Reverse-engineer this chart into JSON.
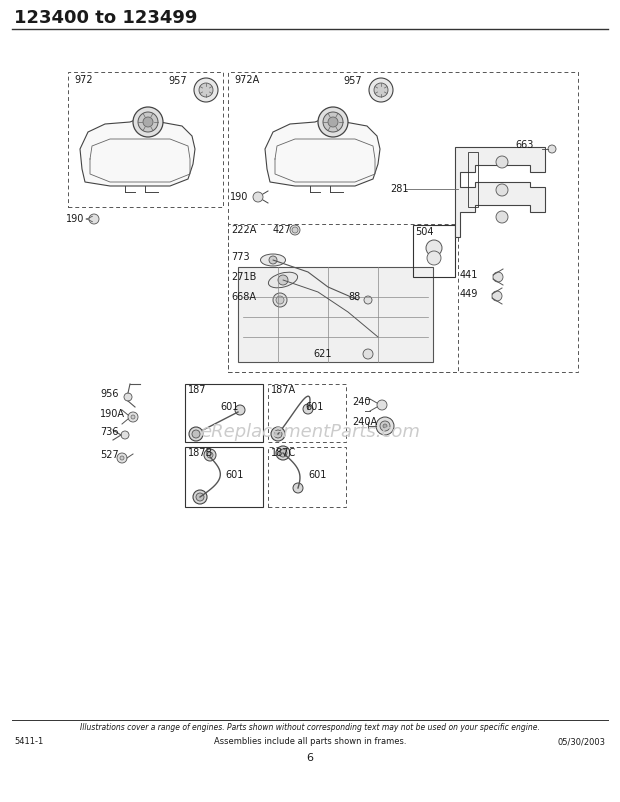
{
  "title": "123400 to 123499",
  "background_color": "#ffffff",
  "page_number": "6",
  "left_code": "5411-1",
  "center_footer": "Assemblies include all parts shown in frames.",
  "right_code": "05/30/2003",
  "disclaimer": "Illustrations cover a range of engines. Parts shown without corresponding text may not be used on your specific engine.",
  "watermark": "eReplacementParts.com",
  "title_fontsize": 13,
  "label_fontsize": 7,
  "footer_fontsize": 6
}
